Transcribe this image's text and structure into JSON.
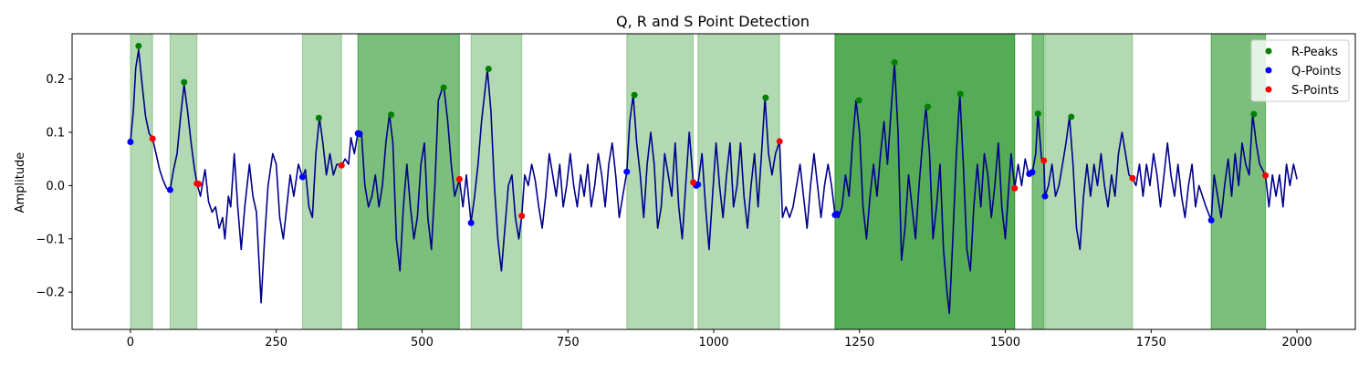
{
  "chart_data": {
    "type": "line",
    "title": "Q, R and S Point Detection",
    "xlabel": "",
    "ylabel": "Amplitude",
    "xlim": [
      -100,
      2100
    ],
    "ylim": [
      -0.27,
      0.285
    ],
    "xticks": [
      0,
      250,
      500,
      750,
      1000,
      1250,
      1500,
      1750,
      2000
    ],
    "yticks": [
      -0.2,
      -0.1,
      0.0,
      0.1,
      0.2
    ],
    "ytick_labels": [
      "−0.2",
      "−0.1",
      "0.0",
      "0.1",
      "0.2"
    ],
    "grid": false,
    "legend_position": "upper right",
    "legend": [
      {
        "label": "R-Peaks",
        "color": "#008000"
      },
      {
        "label": "Q-Points",
        "color": "#0000ff"
      },
      {
        "label": "S-Points",
        "color": "#ff0000"
      }
    ],
    "signal_color": "#00008b",
    "shade_color": "#008000",
    "shaded_regions": [
      [
        0,
        38
      ],
      [
        68,
        114
      ],
      [
        295,
        362
      ],
      [
        390,
        564
      ],
      [
        390,
        564
      ],
      [
        584,
        671
      ],
      [
        851,
        965
      ],
      [
        973,
        1113
      ],
      [
        1208,
        1516
      ],
      [
        1208,
        1516
      ],
      [
        1208,
        1516
      ],
      [
        1546,
        1566
      ],
      [
        1546,
        1566
      ],
      [
        1568,
        1718
      ],
      [
        1853,
        1946
      ],
      [
        1853,
        1946
      ]
    ],
    "signal_keypoints": [
      [
        0,
        0.082
      ],
      [
        5,
        0.14
      ],
      [
        9,
        0.22
      ],
      [
        14,
        0.255
      ],
      [
        20,
        0.19
      ],
      [
        26,
        0.13
      ],
      [
        32,
        0.098
      ],
      [
        38,
        0.088
      ],
      [
        44,
        0.06
      ],
      [
        50,
        0.03
      ],
      [
        56,
        0.01
      ],
      [
        62,
        -0.005
      ],
      [
        68,
        -0.008
      ],
      [
        74,
        0.03
      ],
      [
        80,
        0.06
      ],
      [
        86,
        0.13
      ],
      [
        92,
        0.19
      ],
      [
        98,
        0.14
      ],
      [
        104,
        0.08
      ],
      [
        110,
        0.03
      ],
      [
        114,
        0.004
      ],
      [
        120,
        -0.02
      ],
      [
        128,
        0.03
      ],
      [
        134,
        -0.03
      ],
      [
        140,
        -0.05
      ],
      [
        146,
        -0.04
      ],
      [
        152,
        -0.08
      ],
      [
        158,
        -0.06
      ],
      [
        162,
        -0.1
      ],
      [
        168,
        -0.02
      ],
      [
        172,
        -0.04
      ],
      [
        178,
        0.06
      ],
      [
        184,
        -0.04
      ],
      [
        190,
        -0.12
      ],
      [
        196,
        -0.04
      ],
      [
        204,
        0.04
      ],
      [
        210,
        -0.02
      ],
      [
        216,
        -0.05
      ],
      [
        224,
        -0.22
      ],
      [
        230,
        -0.1
      ],
      [
        236,
        0.0
      ],
      [
        244,
        0.06
      ],
      [
        250,
        0.04
      ],
      [
        256,
        -0.06
      ],
      [
        262,
        -0.1
      ],
      [
        268,
        -0.04
      ],
      [
        274,
        0.02
      ],
      [
        280,
        -0.02
      ],
      [
        288,
        0.04
      ],
      [
        295,
        0.016
      ],
      [
        300,
        0.03
      ],
      [
        306,
        -0.04
      ],
      [
        312,
        -0.06
      ],
      [
        318,
        0.06
      ],
      [
        324,
        0.128
      ],
      [
        330,
        0.08
      ],
      [
        336,
        0.02
      ],
      [
        342,
        0.06
      ],
      [
        348,
        0.02
      ],
      [
        354,
        0.04
      ],
      [
        362,
        0.038
      ],
      [
        368,
        0.05
      ],
      [
        374,
        0.04
      ],
      [
        378,
        0.09
      ],
      [
        384,
        0.06
      ],
      [
        390,
        0.1
      ],
      [
        396,
        0.1
      ],
      [
        402,
        0.0
      ],
      [
        408,
        -0.04
      ],
      [
        414,
        -0.02
      ],
      [
        420,
        0.02
      ],
      [
        426,
        -0.04
      ],
      [
        432,
        0.0
      ],
      [
        438,
        0.08
      ],
      [
        444,
        0.134
      ],
      [
        450,
        0.08
      ],
      [
        456,
        -0.1
      ],
      [
        462,
        -0.16
      ],
      [
        468,
        -0.04
      ],
      [
        474,
        0.04
      ],
      [
        480,
        -0.04
      ],
      [
        486,
        -0.1
      ],
      [
        492,
        -0.06
      ],
      [
        498,
        0.04
      ],
      [
        504,
        0.08
      ],
      [
        510,
        -0.06
      ],
      [
        516,
        -0.12
      ],
      [
        522,
        0.0
      ],
      [
        528,
        0.16
      ],
      [
        534,
        0.18
      ],
      [
        538,
        0.18
      ],
      [
        544,
        0.12
      ],
      [
        550,
        0.04
      ],
      [
        556,
        -0.02
      ],
      [
        564,
        0.012
      ],
      [
        570,
        -0.04
      ],
      [
        576,
        0.02
      ],
      [
        584,
        -0.07
      ],
      [
        590,
        -0.02
      ],
      [
        596,
        0.04
      ],
      [
        602,
        0.12
      ],
      [
        608,
        0.18
      ],
      [
        612,
        0.218
      ],
      [
        618,
        0.14
      ],
      [
        624,
        0.0
      ],
      [
        630,
        -0.1
      ],
      [
        636,
        -0.16
      ],
      [
        642,
        -0.08
      ],
      [
        648,
        0.0
      ],
      [
        654,
        0.02
      ],
      [
        660,
        -0.06
      ],
      [
        666,
        -0.1
      ],
      [
        671,
        -0.057
      ],
      [
        676,
        0.02
      ],
      [
        682,
        0.0
      ],
      [
        688,
        0.04
      ],
      [
        694,
        0.01
      ],
      [
        700,
        -0.04
      ],
      [
        706,
        -0.08
      ],
      [
        712,
        -0.02
      ],
      [
        718,
        0.06
      ],
      [
        724,
        0.02
      ],
      [
        730,
        -0.02
      ],
      [
        736,
        0.04
      ],
      [
        742,
        -0.04
      ],
      [
        748,
        0.0
      ],
      [
        754,
        0.06
      ],
      [
        760,
        0.0
      ],
      [
        766,
        -0.04
      ],
      [
        772,
        0.02
      ],
      [
        778,
        -0.02
      ],
      [
        784,
        0.04
      ],
      [
        790,
        -0.04
      ],
      [
        796,
        0.0
      ],
      [
        802,
        0.06
      ],
      [
        808,
        0.02
      ],
      [
        814,
        -0.04
      ],
      [
        820,
        0.04
      ],
      [
        826,
        0.08
      ],
      [
        832,
        0.02
      ],
      [
        838,
        -0.06
      ],
      [
        844,
        -0.02
      ],
      [
        851,
        0.026
      ],
      [
        856,
        0.12
      ],
      [
        862,
        0.17
      ],
      [
        868,
        0.08
      ],
      [
        874,
        0.02
      ],
      [
        880,
        -0.06
      ],
      [
        886,
        0.04
      ],
      [
        892,
        0.1
      ],
      [
        898,
        0.04
      ],
      [
        904,
        -0.08
      ],
      [
        910,
        -0.04
      ],
      [
        916,
        0.06
      ],
      [
        922,
        0.02
      ],
      [
        928,
        -0.02
      ],
      [
        934,
        0.08
      ],
      [
        940,
        -0.04
      ],
      [
        946,
        -0.1
      ],
      [
        952,
        0.0
      ],
      [
        958,
        0.1
      ],
      [
        965,
        0.006
      ],
      [
        970,
        0.0
      ],
      [
        973,
        0.002
      ],
      [
        980,
        0.06
      ],
      [
        986,
        -0.04
      ],
      [
        992,
        -0.12
      ],
      [
        998,
        -0.02
      ],
      [
        1004,
        0.08
      ],
      [
        1010,
        0.0
      ],
      [
        1016,
        -0.06
      ],
      [
        1022,
        0.02
      ],
      [
        1028,
        0.08
      ],
      [
        1034,
        -0.04
      ],
      [
        1040,
        0.0
      ],
      [
        1046,
        0.08
      ],
      [
        1052,
        -0.02
      ],
      [
        1058,
        -0.08
      ],
      [
        1064,
        0.0
      ],
      [
        1070,
        0.06
      ],
      [
        1076,
        -0.04
      ],
      [
        1082,
        0.06
      ],
      [
        1088,
        0.165
      ],
      [
        1094,
        0.06
      ],
      [
        1100,
        0.02
      ],
      [
        1106,
        0.06
      ],
      [
        1113,
        0.083
      ],
      [
        1118,
        -0.06
      ],
      [
        1124,
        -0.04
      ],
      [
        1130,
        -0.06
      ],
      [
        1136,
        -0.04
      ],
      [
        1142,
        0.0
      ],
      [
        1148,
        0.04
      ],
      [
        1154,
        -0.02
      ],
      [
        1160,
        -0.08
      ],
      [
        1166,
        0.0
      ],
      [
        1172,
        0.06
      ],
      [
        1178,
        0.0
      ],
      [
        1184,
        -0.06
      ],
      [
        1190,
        0.0
      ],
      [
        1196,
        0.04
      ],
      [
        1202,
        0.0
      ],
      [
        1208,
        -0.054
      ],
      [
        1214,
        -0.06
      ],
      [
        1220,
        -0.04
      ],
      [
        1226,
        0.02
      ],
      [
        1232,
        -0.02
      ],
      [
        1238,
        0.08
      ],
      [
        1244,
        0.16
      ],
      [
        1250,
        0.1
      ],
      [
        1256,
        -0.04
      ],
      [
        1262,
        -0.1
      ],
      [
        1268,
        -0.02
      ],
      [
        1274,
        0.04
      ],
      [
        1280,
        -0.02
      ],
      [
        1286,
        0.06
      ],
      [
        1292,
        0.12
      ],
      [
        1298,
        0.04
      ],
      [
        1304,
        0.14
      ],
      [
        1310,
        0.23
      ],
      [
        1316,
        0.1
      ],
      [
        1322,
        -0.14
      ],
      [
        1328,
        -0.08
      ],
      [
        1334,
        0.02
      ],
      [
        1340,
        -0.04
      ],
      [
        1346,
        -0.1
      ],
      [
        1352,
        0.0
      ],
      [
        1358,
        0.08
      ],
      [
        1364,
        0.148
      ],
      [
        1370,
        0.06
      ],
      [
        1376,
        -0.1
      ],
      [
        1382,
        -0.04
      ],
      [
        1388,
        0.04
      ],
      [
        1394,
        -0.12
      ],
      [
        1400,
        -0.2
      ],
      [
        1404,
        -0.24
      ],
      [
        1410,
        -0.1
      ],
      [
        1416,
        0.06
      ],
      [
        1422,
        0.172
      ],
      [
        1428,
        0.04
      ],
      [
        1434,
        -0.12
      ],
      [
        1440,
        -0.16
      ],
      [
        1446,
        -0.04
      ],
      [
        1452,
        0.04
      ],
      [
        1458,
        -0.04
      ],
      [
        1464,
        0.06
      ],
      [
        1470,
        0.02
      ],
      [
        1476,
        -0.06
      ],
      [
        1482,
        0.0
      ],
      [
        1488,
        0.08
      ],
      [
        1494,
        -0.04
      ],
      [
        1500,
        -0.1
      ],
      [
        1506,
        0.0
      ],
      [
        1510,
        0.06
      ],
      [
        1516,
        -0.005
      ],
      [
        1522,
        0.04
      ],
      [
        1528,
        0.0
      ],
      [
        1534,
        0.05
      ],
      [
        1540,
        0.02
      ],
      [
        1546,
        0.022
      ],
      [
        1552,
        0.06
      ],
      [
        1556,
        0.135
      ],
      [
        1562,
        0.05
      ],
      [
        1566,
        0.047
      ],
      [
        1568,
        -0.02
      ],
      [
        1574,
        0.0
      ],
      [
        1580,
        0.04
      ],
      [
        1586,
        -0.02
      ],
      [
        1592,
        0.0
      ],
      [
        1598,
        0.04
      ],
      [
        1604,
        0.08
      ],
      [
        1610,
        0.129
      ],
      [
        1616,
        0.04
      ],
      [
        1622,
        -0.08
      ],
      [
        1628,
        -0.12
      ],
      [
        1634,
        -0.02
      ],
      [
        1640,
        0.04
      ],
      [
        1646,
        -0.02
      ],
      [
        1652,
        0.04
      ],
      [
        1658,
        0.0
      ],
      [
        1664,
        0.06
      ],
      [
        1670,
        0.0
      ],
      [
        1676,
        -0.04
      ],
      [
        1682,
        0.02
      ],
      [
        1688,
        -0.02
      ],
      [
        1694,
        0.06
      ],
      [
        1700,
        0.1
      ],
      [
        1706,
        0.06
      ],
      [
        1712,
        0.02
      ],
      [
        1718,
        0.014
      ],
      [
        1724,
        0.0
      ],
      [
        1730,
        0.04
      ],
      [
        1736,
        -0.02
      ],
      [
        1742,
        0.04
      ],
      [
        1748,
        0.0
      ],
      [
        1754,
        0.06
      ],
      [
        1760,
        0.02
      ],
      [
        1766,
        -0.04
      ],
      [
        1772,
        0.02
      ],
      [
        1778,
        0.08
      ],
      [
        1784,
        0.02
      ],
      [
        1790,
        -0.02
      ],
      [
        1796,
        0.04
      ],
      [
        1802,
        -0.02
      ],
      [
        1808,
        -0.06
      ],
      [
        1814,
        0.0
      ],
      [
        1820,
        0.04
      ],
      [
        1826,
        -0.04
      ],
      [
        1832,
        0.0
      ],
      [
        1838,
        -0.02
      ],
      [
        1844,
        -0.04
      ],
      [
        1853,
        -0.065
      ],
      [
        1858,
        0.02
      ],
      [
        1864,
        -0.02
      ],
      [
        1870,
        -0.06
      ],
      [
        1876,
        0.0
      ],
      [
        1882,
        0.05
      ],
      [
        1888,
        -0.02
      ],
      [
        1894,
        0.06
      ],
      [
        1900,
        0.0
      ],
      [
        1906,
        0.08
      ],
      [
        1912,
        0.04
      ],
      [
        1918,
        0.02
      ],
      [
        1924,
        0.134
      ],
      [
        1930,
        0.08
      ],
      [
        1936,
        0.04
      ],
      [
        1946,
        0.019
      ],
      [
        1952,
        -0.04
      ],
      [
        1958,
        0.02
      ],
      [
        1964,
        -0.02
      ],
      [
        1970,
        0.02
      ],
      [
        1976,
        -0.04
      ],
      [
        1982,
        0.04
      ],
      [
        1988,
        0.0
      ],
      [
        1994,
        0.04
      ],
      [
        2000,
        0.012
      ]
    ],
    "r_peaks": [
      [
        14,
        0.262
      ],
      [
        92,
        0.194
      ],
      [
        323,
        0.127
      ],
      [
        447,
        0.133
      ],
      [
        537,
        0.184
      ],
      [
        614,
        0.219
      ],
      [
        864,
        0.17
      ],
      [
        1089,
        0.165
      ],
      [
        1249,
        0.16
      ],
      [
        1310,
        0.231
      ],
      [
        1367,
        0.148
      ],
      [
        1423,
        0.172
      ],
      [
        1556,
        0.135
      ],
      [
        1613,
        0.129
      ],
      [
        1926,
        0.134
      ]
    ],
    "q_points": [
      [
        0,
        0.082
      ],
      [
        68,
        -0.008
      ],
      [
        295,
        0.016
      ],
      [
        390,
        0.098
      ],
      [
        393,
        0.097
      ],
      [
        584,
        -0.07
      ],
      [
        851,
        0.026
      ],
      [
        970,
        0.0
      ],
      [
        973,
        0.002
      ],
      [
        1208,
        -0.055
      ],
      [
        1211,
        -0.053
      ],
      [
        1541,
        0.022
      ],
      [
        1546,
        0.025
      ],
      [
        1568,
        -0.02
      ],
      [
        1853,
        -0.065
      ]
    ],
    "s_points": [
      [
        38,
        0.088
      ],
      [
        114,
        0.004
      ],
      [
        117,
        0.003
      ],
      [
        362,
        0.038
      ],
      [
        564,
        0.012
      ],
      [
        671,
        -0.057
      ],
      [
        965,
        0.006
      ],
      [
        1113,
        0.083
      ],
      [
        1516,
        -0.005
      ],
      [
        1566,
        0.047
      ],
      [
        1718,
        0.014
      ],
      [
        1946,
        0.019
      ]
    ]
  }
}
